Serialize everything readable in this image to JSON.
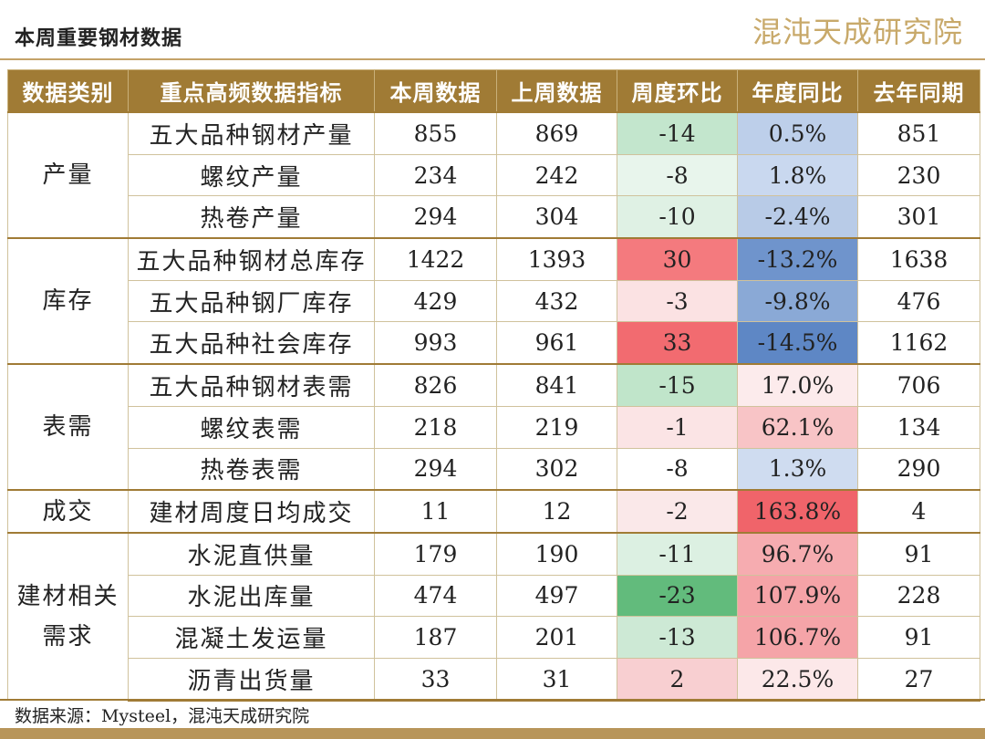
{
  "title": "本周重要钢材数据",
  "logo_text": "混沌天成研究院",
  "headers": [
    "数据类别",
    "重点高频数据指标",
    "本周数据",
    "上周数据",
    "周度环比",
    "年度同比",
    "去年同期"
  ],
  "groups": [
    {
      "category": "产量",
      "rows": [
        {
          "indicator": "五大品种钢材产量",
          "this_week": "855",
          "last_week": "869",
          "wow": "-14",
          "yoy": "0.5%",
          "last_year": "851",
          "wow_color": "#c3e6cd",
          "yoy_color": "#bdcfea"
        },
        {
          "indicator": "螺纹产量",
          "this_week": "234",
          "last_week": "242",
          "wow": "-8",
          "yoy": "1.8%",
          "last_year": "230",
          "wow_color": "#e8f5ec",
          "yoy_color": "#c9d8ef"
        },
        {
          "indicator": "热卷产量",
          "this_week": "294",
          "last_week": "304",
          "wow": "-10",
          "yoy": "-2.4%",
          "last_year": "301",
          "wow_color": "#dff1e4",
          "yoy_color": "#b8cbe7"
        }
      ]
    },
    {
      "category": "库存",
      "rows": [
        {
          "indicator": "五大品种钢材总库存",
          "this_week": "1422",
          "last_week": "1393",
          "wow": "30",
          "yoy": "-13.2%",
          "last_year": "1638",
          "wow_color": "#f47a7e",
          "yoy_color": "#6f94cc"
        },
        {
          "indicator": "五大品种钢厂库存",
          "this_week": "429",
          "last_week": "432",
          "wow": "-3",
          "yoy": "-9.8%",
          "last_year": "476",
          "wow_color": "#fbe2e3",
          "yoy_color": "#8aa9d6"
        },
        {
          "indicator": "五大品种社会库存",
          "this_week": "993",
          "last_week": "961",
          "wow": "33",
          "yoy": "-14.5%",
          "last_year": "1162",
          "wow_color": "#f26b70",
          "yoy_color": "#5e87c5"
        }
      ]
    },
    {
      "category": "表需",
      "rows": [
        {
          "indicator": "五大品种钢材表需",
          "this_week": "826",
          "last_week": "841",
          "wow": "-15",
          "yoy": "17.0%",
          "last_year": "706",
          "wow_color": "#c0e5ca",
          "yoy_color": "#fcebec"
        },
        {
          "indicator": "螺纹表需",
          "this_week": "218",
          "last_week": "219",
          "wow": "-1",
          "yoy": "62.1%",
          "last_year": "134",
          "wow_color": "#fbe4e5",
          "yoy_color": "#f8c4c6"
        },
        {
          "indicator": "热卷表需",
          "this_week": "294",
          "last_week": "302",
          "wow": "-8",
          "yoy": "1.3%",
          "last_year": "290",
          "wow_color": "#ffffff",
          "yoy_color": "#cfdcf0"
        }
      ]
    },
    {
      "category": "成交",
      "rows": [
        {
          "indicator": "建材周度日均成交",
          "this_week": "11",
          "last_week": "12",
          "wow": "-2",
          "yoy": "163.8%",
          "last_year": "4",
          "wow_color": "#fae8e9",
          "yoy_color": "#f0646a"
        }
      ]
    },
    {
      "category": "建材相关需求",
      "rows": [
        {
          "indicator": "水泥直供量",
          "this_week": "179",
          "last_week": "190",
          "wow": "-11",
          "yoy": "96.7%",
          "last_year": "91",
          "wow_color": "#dcf0e2",
          "yoy_color": "#f6acb0"
        },
        {
          "indicator": "水泥出库量",
          "this_week": "474",
          "last_week": "497",
          "wow": "-23",
          "yoy": "107.9%",
          "last_year": "228",
          "wow_color": "#62bb7c",
          "yoy_color": "#f5a3a7"
        },
        {
          "indicator": "混凝土发运量",
          "this_week": "187",
          "last_week": "201",
          "wow": "-13",
          "yoy": "106.7%",
          "last_year": "91",
          "wow_color": "#cde9d5",
          "yoy_color": "#f5a4a8"
        },
        {
          "indicator": "沥青出货量",
          "this_week": "33",
          "last_week": "31",
          "wow": "2",
          "yoy": "22.5%",
          "last_year": "27",
          "wow_color": "#f8cfd1",
          "yoy_color": "#fce8e9"
        }
      ]
    }
  ],
  "source_note": "数据来源：Mysteel，混沌天成研究院"
}
